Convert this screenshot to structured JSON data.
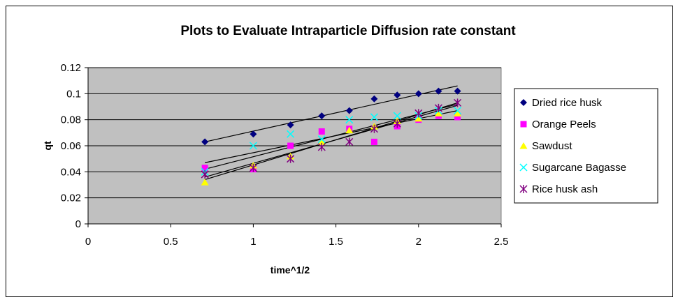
{
  "chart_data": {
    "type": "scatter",
    "title": "Plots to Evaluate Intraparticle Diffusion rate constant",
    "xlabel": "time^1/2",
    "ylabel": "qt",
    "xlim": [
      0,
      2.5
    ],
    "ylim": [
      0,
      0.12
    ],
    "xticks": [
      "0",
      "0.5",
      "1",
      "1.5",
      "2",
      "2.5"
    ],
    "yticks": [
      "0",
      "0.02",
      "0.04",
      "0.06",
      "0.08",
      "0.1",
      "0.12"
    ],
    "grid": "horizontal",
    "plot_background": "#c0c0c0",
    "legend_position": "right",
    "x": [
      0.707,
      1.0,
      1.225,
      1.414,
      1.581,
      1.732,
      1.871,
      2.0,
      2.121,
      2.236
    ],
    "series": [
      {
        "name": "Dried rice husk",
        "marker": "diamond",
        "color": "#000080",
        "values": [
          0.063,
          0.069,
          0.076,
          0.083,
          0.087,
          0.096,
          0.099,
          0.1,
          0.102,
          0.102
        ],
        "trend": [
          0.063,
          0.106
        ]
      },
      {
        "name": "Orange Peels",
        "marker": "square",
        "color": "#ff00ff",
        "values": [
          0.043,
          0.042,
          0.06,
          0.071,
          0.073,
          0.063,
          0.075,
          0.08,
          0.083,
          0.082
        ],
        "trend": [
          0.047,
          0.087
        ]
      },
      {
        "name": "Sawdust",
        "marker": "triangle",
        "color": "#ffff00",
        "values": [
          0.032,
          0.045,
          0.052,
          0.063,
          0.072,
          0.075,
          0.079,
          0.081,
          0.085,
          0.085
        ],
        "trend": [
          0.036,
          0.091
        ]
      },
      {
        "name": "Sugarcane Bagasse",
        "marker": "x",
        "color": "#00ffff",
        "values": [
          0.04,
          0.06,
          0.069,
          0.065,
          0.08,
          0.082,
          0.083,
          0.083,
          0.087,
          0.087
        ],
        "trend": [
          0.042,
          0.092
        ]
      },
      {
        "name": "Rice husk ash",
        "marker": "star",
        "color": "#800080",
        "values": [
          0.038,
          0.043,
          0.05,
          0.059,
          0.063,
          0.073,
          0.077,
          0.085,
          0.089,
          0.093
        ],
        "trend": [
          0.034,
          0.093
        ]
      }
    ]
  }
}
